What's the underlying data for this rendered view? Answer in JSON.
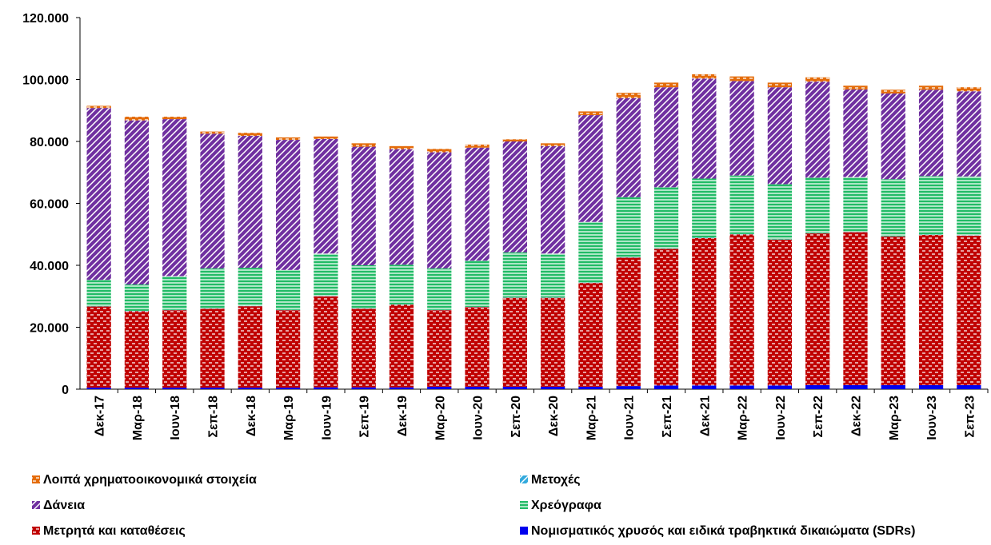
{
  "chart_data": {
    "type": "stacked_bar",
    "categories": [
      "Δεκ-17",
      "Μαρ-18",
      "Ιουν-18",
      "Σεπ-18",
      "Δεκ-18",
      "Μαρ-19",
      "Ιουν-19",
      "Σεπ-19",
      "Δεκ-19",
      "Μαρ-20",
      "Ιουν-20",
      "Σεπ-20",
      "Δεκ-20",
      "Μαρ-21",
      "Ιουν-21",
      "Σεπ-21",
      "Δεκ-21",
      "Μαρ-22",
      "Ιουν-22",
      "Σεπ-22",
      "Δεκ-22",
      "Μαρ-23",
      "Ιουν-23",
      "Σεπ-23"
    ],
    "series": [
      {
        "name": "Νομισματικός χρυσός και ειδικά τραβηκτικά δικαιώματα (SDRs)",
        "color": "#0000ee",
        "values": [
          500,
          500,
          500,
          500,
          500,
          500,
          600,
          600,
          600,
          800,
          800,
          800,
          800,
          800,
          1000,
          1200,
          1200,
          1200,
          1200,
          1300,
          1300,
          1300,
          1300,
          1300
        ]
      },
      {
        "name": "Μετρητά και καταθέσεις",
        "color": "#c00000",
        "values": [
          26200,
          24700,
          25000,
          25500,
          26300,
          25000,
          29400,
          25400,
          26700,
          24700,
          25700,
          28700,
          28700,
          33500,
          41500,
          44100,
          47600,
          48800,
          47100,
          49000,
          49400,
          48000,
          48500,
          48300
        ]
      },
      {
        "name": "Μετοχές",
        "color": "#33aadd",
        "values": [
          100,
          100,
          100,
          100,
          100,
          100,
          100,
          100,
          100,
          100,
          100,
          100,
          100,
          100,
          100,
          100,
          100,
          100,
          100,
          100,
          100,
          100,
          100,
          100
        ]
      },
      {
        "name": "Χρεόγραφα",
        "color": "#22bb66",
        "values": [
          8500,
          8500,
          10900,
          12900,
          12300,
          12900,
          13700,
          13900,
          12800,
          13400,
          14900,
          14600,
          14200,
          19600,
          19400,
          19800,
          19100,
          18900,
          17800,
          17900,
          17700,
          18400,
          18900,
          19000
        ]
      },
      {
        "name": "Δάνεια",
        "color": "#7030a0",
        "values": [
          55500,
          53000,
          50700,
          43500,
          42600,
          42000,
          37000,
          38300,
          37300,
          37500,
          36500,
          35800,
          34700,
          34500,
          32000,
          32300,
          32300,
          30500,
          31300,
          31000,
          28300,
          27700,
          27900,
          27500
        ]
      },
      {
        "name": "Λοιπά χρηματοοικονομικά στοιχεία",
        "color": "#e46c0a",
        "values": [
          700,
          1200,
          800,
          700,
          1000,
          800,
          800,
          1100,
          1000,
          1100,
          1000,
          700,
          900,
          1200,
          1700,
          1500,
          1400,
          1500,
          1500,
          1400,
          1200,
          1200,
          1300,
          1300
        ]
      }
    ],
    "ylim": [
      0,
      120000
    ],
    "yticks": [
      0,
      {
        "value": 20000,
        "label": "20.000"
      },
      {
        "value": 40000,
        "label": "40.000"
      },
      {
        "value": 60000,
        "label": "60.000"
      },
      {
        "value": 80000,
        "label": "80.000"
      },
      {
        "value": 100000,
        "label": "100.000"
      },
      {
        "value": 120000,
        "label": "120.000"
      }
    ],
    "grid": false
  }
}
